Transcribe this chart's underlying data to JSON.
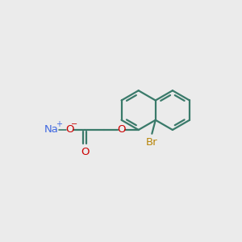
{
  "bg_color": "#ebebeb",
  "bond_color": "#3a7a6a",
  "bond_width": 1.6,
  "na_color": "#4169e1",
  "o_color": "#cc0000",
  "br_color": "#b8860b",
  "text_fontsize": 9.5,
  "figsize": [
    3.0,
    3.0
  ],
  "dpi": 100,
  "xlim": [
    0,
    10
  ],
  "ylim": [
    0,
    10
  ]
}
